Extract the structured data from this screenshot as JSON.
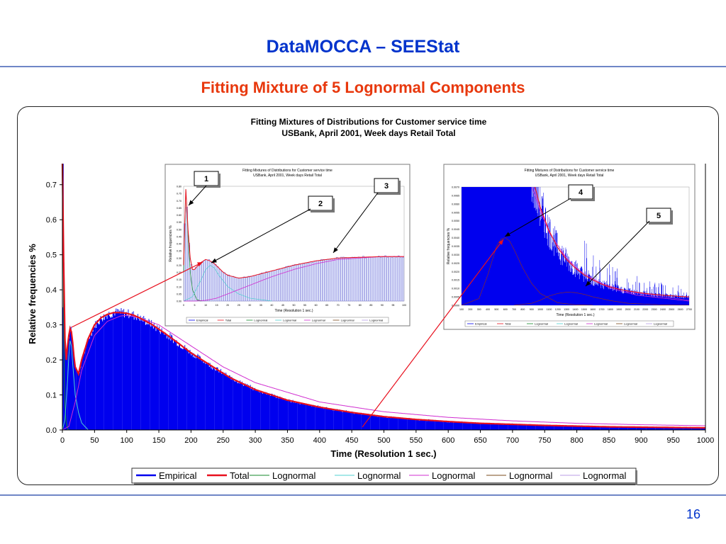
{
  "slide": {
    "title": "DataMOCCA – SEEStat",
    "subtitle": "Fitting Mixture of 5 Lognormal Components",
    "page_number": "16"
  },
  "colors": {
    "title": "#0033cc",
    "subtitle": "#e8380d",
    "empirical": "#0000ee",
    "total": "#e8101e",
    "components": [
      "#138a2a",
      "#4fd0d0",
      "#d02cd0",
      "#7a4a1a",
      "#b89ce6"
    ],
    "annotation_arrow": "#e8101e"
  },
  "chart_data": [
    {
      "type": "bar",
      "title": "Fitting Mixtures of Distributions for Customer service time",
      "subtitle": "USBank, April 2001, Week days Retail Total",
      "xlabel": "Time (Resolution 1 sec.)",
      "ylabel": "Relative frequencies %",
      "xlim": [
        0,
        1000
      ],
      "ylim": [
        0,
        0.75
      ],
      "xticks": [
        0,
        50,
        100,
        150,
        200,
        250,
        300,
        350,
        400,
        450,
        500,
        550,
        600,
        650,
        700,
        750,
        800,
        850,
        900,
        950,
        1000
      ],
      "yticks": [
        "0.0",
        "0.1",
        "0.2",
        "0.3",
        "0.4",
        "0.5",
        "0.6",
        "0.7"
      ],
      "legend_position": "bottom",
      "legend": [
        "Empirical",
        "Total",
        "Lognormal",
        "Lognormal",
        "Lognormal",
        "Lognormal",
        "Lognormal"
      ],
      "total_curve": {
        "x": [
          0,
          2,
          4,
          6,
          8,
          10,
          12,
          14,
          16,
          18,
          20,
          25,
          30,
          40,
          50,
          60,
          70,
          80,
          90,
          100,
          110,
          120,
          140,
          160,
          180,
          200,
          230,
          260,
          300,
          350,
          400,
          450,
          500,
          550,
          600,
          650,
          700,
          750,
          800,
          850,
          900,
          950,
          1000
        ],
        "y": [
          0.76,
          0.48,
          0.26,
          0.2,
          0.24,
          0.27,
          0.29,
          0.28,
          0.25,
          0.21,
          0.18,
          0.16,
          0.2,
          0.26,
          0.3,
          0.32,
          0.33,
          0.335,
          0.335,
          0.333,
          0.328,
          0.32,
          0.3,
          0.275,
          0.248,
          0.22,
          0.185,
          0.15,
          0.115,
          0.085,
          0.065,
          0.05,
          0.038,
          0.03,
          0.024,
          0.019,
          0.016,
          0.013,
          0.011,
          0.009,
          0.008,
          0.007,
          0.006
        ]
      },
      "components": [
        {
          "x": [
            0,
            1,
            2,
            3,
            4,
            6,
            8,
            10,
            15
          ],
          "y": [
            0.76,
            0.55,
            0.3,
            0.15,
            0.07,
            0.02,
            0.005,
            0,
            0
          ]
        },
        {
          "x": [
            0,
            4,
            8,
            10,
            12,
            14,
            16,
            20,
            25,
            30,
            40
          ],
          "y": [
            0,
            0.03,
            0.14,
            0.21,
            0.255,
            0.24,
            0.19,
            0.1,
            0.05,
            0.02,
            0
          ]
        },
        {
          "x": [
            0,
            10,
            20,
            30,
            50,
            70,
            90,
            100,
            120,
            150,
            200,
            250,
            300,
            400,
            500,
            600,
            700,
            800,
            900,
            1000
          ],
          "y": [
            0,
            0.01,
            0.08,
            0.17,
            0.27,
            0.31,
            0.325,
            0.327,
            0.32,
            0.3,
            0.24,
            0.18,
            0.135,
            0.08,
            0.052,
            0.036,
            0.026,
            0.019,
            0.015,
            0.012
          ]
        }
      ]
    },
    {
      "type": "bar",
      "title": "Fitting Mixtures of Distributions for Customer service time",
      "subtitle": "USBank, April 2001, Week days Retail Total",
      "xlabel": "Time (Resolution 1 sec.)",
      "ylabel": "Relative frequencies %",
      "xlim": [
        0,
        100
      ],
      "ylim": [
        0,
        0.8
      ],
      "xticks": [
        0,
        5,
        10,
        15,
        20,
        25,
        30,
        35,
        40,
        45,
        50,
        55,
        60,
        65,
        70,
        75,
        80,
        85,
        90,
        95,
        100
      ],
      "yticks": [
        "0.00",
        "0.05",
        "0.10",
        "0.15",
        "0.20",
        "0.25",
        "0.30",
        "0.35",
        "0.40",
        "0.45",
        "0.50",
        "0.55",
        "0.60",
        "0.65",
        "0.70",
        "0.75",
        "0.80"
      ],
      "legend": [
        "Empirical",
        "Total",
        "Lognormal",
        "Lognormal",
        "Lognormal",
        "Lognormal",
        "Lognormal"
      ],
      "annotations": [
        "1",
        "2",
        "3"
      ]
    },
    {
      "type": "bar",
      "title": "Fitting Mixtures of Distributions for Customer service time",
      "subtitle": "USBank, April 2001, Week days Retail Total",
      "xlabel": "Time (Resolution 1 sec.)",
      "ylabel": "Relative frequencies %",
      "xlim": [
        100,
        2700
      ],
      "ylim": [
        0,
        0.007
      ],
      "xticks": [
        100,
        200,
        300,
        400,
        500,
        600,
        700,
        800,
        900,
        1000,
        1100,
        1200,
        1300,
        1400,
        1500,
        1600,
        1700,
        1800,
        1900,
        2000,
        2100,
        2200,
        2300,
        2400,
        2500,
        2600,
        2700
      ],
      "yticks": [
        "0.0000",
        "0.0005",
        "0.0010",
        "0.0015",
        "0.0020",
        "0.0025",
        "0.0030",
        "0.0035",
        "0.0040",
        "0.0045",
        "0.0050",
        "0.0055",
        "0.0060",
        "0.0065",
        "0.0070"
      ],
      "legend": [
        "Empirical",
        "Total",
        "Lognormal",
        "Lognormal",
        "Lognormal",
        "Lognormal",
        "Lognormal"
      ],
      "annotations": [
        "4",
        "5"
      ]
    }
  ]
}
